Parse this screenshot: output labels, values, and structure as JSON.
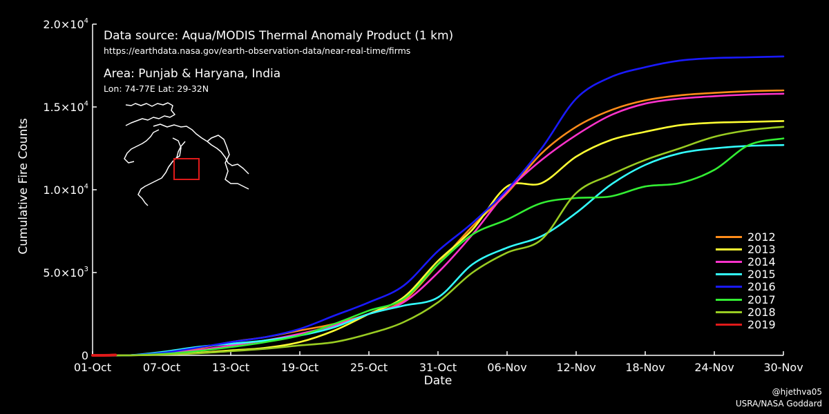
{
  "info": {
    "source": "Data source: Aqua/MODIS Thermal Anomaly Product (1 km)",
    "url": "https://earthdata.nasa.gov/earth-observation-data/near-real-time/firms",
    "area": "Area: Punjab & Haryana, India",
    "coords": "Lon: 74-77E Lat: 29-32N"
  },
  "credits": {
    "handle": "@hjethva05",
    "org": "USRA/NASA Goddard"
  },
  "chart_data": {
    "type": "line",
    "xlabel": "Date",
    "ylabel": "Cumulative Fire Counts",
    "x_tick_labels": [
      "01-Oct",
      "07-Oct",
      "13-Oct",
      "19-Oct",
      "25-Oct",
      "31-Oct",
      "06-Nov",
      "12-Nov",
      "18-Nov",
      "24-Nov",
      "30-Nov"
    ],
    "y_tick_labels": [
      {
        "value": 0,
        "mant": "0",
        "exp": ""
      },
      {
        "value": 5000,
        "mant": "5.0×10",
        "exp": "3"
      },
      {
        "value": 10000,
        "mant": "1.0×10",
        "exp": "4"
      },
      {
        "value": 15000,
        "mant": "1.5×10",
        "exp": "4"
      },
      {
        "value": 20000,
        "mant": "2.0×10",
        "exp": "4"
      }
    ],
    "xlim": [
      0,
      60
    ],
    "ylim": [
      0,
      20000
    ],
    "x_unit": "days since 01-Oct",
    "grid": false,
    "legend_position": "bottom-right",
    "series": [
      {
        "name": "2012",
        "color": "#ff8c1a",
        "points": [
          [
            0,
            0
          ],
          [
            3,
            0
          ],
          [
            6,
            150
          ],
          [
            9,
            400
          ],
          [
            12,
            800
          ],
          [
            15,
            1100
          ],
          [
            18,
            1500
          ],
          [
            21,
            1900
          ],
          [
            24,
            2500
          ],
          [
            27,
            3300
          ],
          [
            30,
            5500
          ],
          [
            33,
            7800
          ],
          [
            36,
            9800
          ],
          [
            39,
            12200
          ],
          [
            42,
            13800
          ],
          [
            45,
            14800
          ],
          [
            48,
            15400
          ],
          [
            51,
            15700
          ],
          [
            54,
            15850
          ],
          [
            57,
            15950
          ],
          [
            60,
            16000
          ]
        ]
      },
      {
        "name": "2013",
        "color": "#ffff33",
        "points": [
          [
            0,
            0
          ],
          [
            3,
            0
          ],
          [
            6,
            50
          ],
          [
            9,
            150
          ],
          [
            12,
            300
          ],
          [
            15,
            450
          ],
          [
            18,
            800
          ],
          [
            21,
            1500
          ],
          [
            24,
            2500
          ],
          [
            27,
            3500
          ],
          [
            30,
            5700
          ],
          [
            33,
            7600
          ],
          [
            36,
            10200
          ],
          [
            39,
            10400
          ],
          [
            42,
            12000
          ],
          [
            45,
            13000
          ],
          [
            48,
            13500
          ],
          [
            51,
            13900
          ],
          [
            54,
            14050
          ],
          [
            57,
            14100
          ],
          [
            60,
            14150
          ]
        ]
      },
      {
        "name": "2014",
        "color": "#ff33cc",
        "points": [
          [
            0,
            0
          ],
          [
            3,
            0
          ],
          [
            6,
            100
          ],
          [
            9,
            300
          ],
          [
            12,
            600
          ],
          [
            15,
            900
          ],
          [
            18,
            1300
          ],
          [
            21,
            1800
          ],
          [
            24,
            2500
          ],
          [
            27,
            3200
          ],
          [
            30,
            5000
          ],
          [
            33,
            7300
          ],
          [
            36,
            9900
          ],
          [
            39,
            11800
          ],
          [
            42,
            13300
          ],
          [
            45,
            14500
          ],
          [
            48,
            15200
          ],
          [
            51,
            15500
          ],
          [
            54,
            15650
          ],
          [
            57,
            15750
          ],
          [
            60,
            15800
          ]
        ]
      },
      {
        "name": "2015",
        "color": "#33ffff",
        "points": [
          [
            0,
            0
          ],
          [
            3,
            0
          ],
          [
            6,
            200
          ],
          [
            9,
            500
          ],
          [
            12,
            700
          ],
          [
            15,
            900
          ],
          [
            18,
            1200
          ],
          [
            21,
            1700
          ],
          [
            24,
            2500
          ],
          [
            27,
            3000
          ],
          [
            30,
            3500
          ],
          [
            33,
            5500
          ],
          [
            36,
            6500
          ],
          [
            39,
            7200
          ],
          [
            42,
            8600
          ],
          [
            45,
            10300
          ],
          [
            48,
            11500
          ],
          [
            51,
            12200
          ],
          [
            54,
            12500
          ],
          [
            57,
            12650
          ],
          [
            60,
            12700
          ]
        ]
      },
      {
        "name": "2016",
        "color": "#1a1aff",
        "points": [
          [
            0,
            0
          ],
          [
            3,
            0
          ],
          [
            6,
            150
          ],
          [
            9,
            450
          ],
          [
            12,
            800
          ],
          [
            15,
            1100
          ],
          [
            18,
            1600
          ],
          [
            21,
            2400
          ],
          [
            24,
            3200
          ],
          [
            27,
            4200
          ],
          [
            30,
            6300
          ],
          [
            33,
            8000
          ],
          [
            36,
            10000
          ],
          [
            39,
            12500
          ],
          [
            42,
            15500
          ],
          [
            45,
            16800
          ],
          [
            48,
            17400
          ],
          [
            51,
            17800
          ],
          [
            54,
            17950
          ],
          [
            57,
            18000
          ],
          [
            60,
            18050
          ]
        ]
      },
      {
        "name": "2017",
        "color": "#33ee33",
        "points": [
          [
            0,
            0
          ],
          [
            3,
            0
          ],
          [
            6,
            80
          ],
          [
            9,
            250
          ],
          [
            12,
            500
          ],
          [
            15,
            800
          ],
          [
            18,
            1200
          ],
          [
            21,
            1900
          ],
          [
            24,
            2700
          ],
          [
            27,
            3400
          ],
          [
            30,
            5500
          ],
          [
            33,
            7300
          ],
          [
            36,
            8200
          ],
          [
            39,
            9200
          ],
          [
            42,
            9500
          ],
          [
            45,
            9600
          ],
          [
            48,
            10200
          ],
          [
            51,
            10400
          ],
          [
            54,
            11200
          ],
          [
            57,
            12700
          ],
          [
            60,
            13100
          ]
        ]
      },
      {
        "name": "2018",
        "color": "#99cc22",
        "points": [
          [
            0,
            0
          ],
          [
            3,
            0
          ],
          [
            6,
            40
          ],
          [
            9,
            120
          ],
          [
            12,
            250
          ],
          [
            15,
            400
          ],
          [
            18,
            600
          ],
          [
            21,
            800
          ],
          [
            24,
            1300
          ],
          [
            27,
            2000
          ],
          [
            30,
            3200
          ],
          [
            33,
            5000
          ],
          [
            36,
            6200
          ],
          [
            39,
            7000
          ],
          [
            42,
            9800
          ],
          [
            45,
            10900
          ],
          [
            48,
            11800
          ],
          [
            51,
            12500
          ],
          [
            54,
            13200
          ],
          [
            57,
            13600
          ],
          [
            60,
            13800
          ]
        ]
      },
      {
        "name": "2019",
        "color": "#e01a1a",
        "points": [
          [
            0,
            0
          ],
          [
            1,
            0
          ],
          [
            2,
            20
          ]
        ]
      }
    ]
  }
}
